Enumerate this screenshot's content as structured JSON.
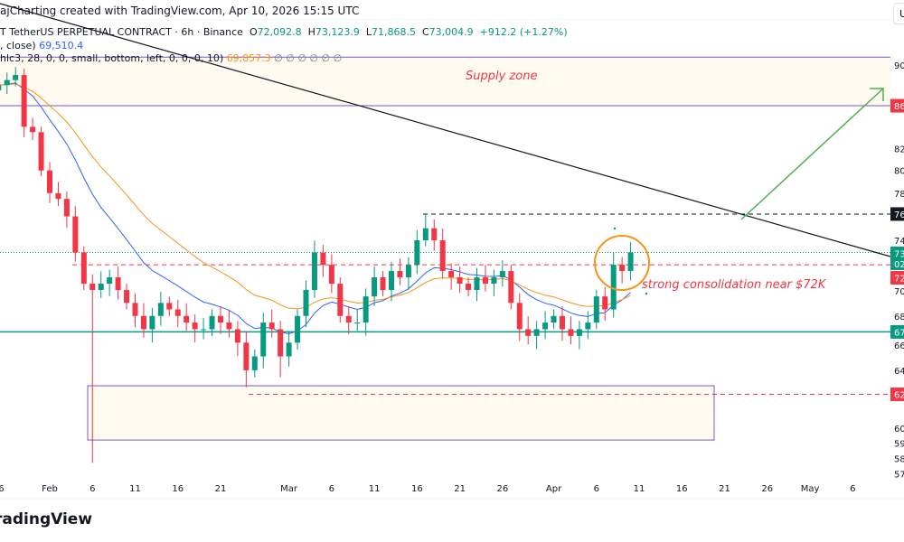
{
  "header": {
    "credit": "ajCharting created with TradingView.com, Apr 10, 2026 15:15 UTC",
    "symbol": "T TetherUS PERPETUAL CONTRACT · 6h · Binance",
    "open_label": "O",
    "open": "72,092.8",
    "high_label": "H",
    "high": "73,123.9",
    "low_label": "L",
    "low": "71,868.5",
    "close_label": "C",
    "close": "73,004.9",
    "change": "+912.2 (+1.27%)",
    "ind1_text": ", close)",
    "ind1_value": "69,510.4",
    "ind2_text": "hlc3, 28, 0, 0, small, bottom, left, 0, 0, 0, 10)",
    "ind2_value": "69,857.3",
    "ind2_empty": "∅  ∅  ∅  ∅  ∅  ∅"
  },
  "top_right_button": "U",
  "logo": "radingView",
  "annotations": {
    "supply_zone": "Supply zone",
    "consolidation": "strong consolidation near $72K"
  },
  "colors": {
    "up": "#089981",
    "down": "#f23645",
    "ema_fast": "#2962ff",
    "ema_slow": "#f7931a",
    "zone_border": "#7e57c2",
    "trendline": "#131722",
    "arrow": "#4caf50",
    "circle": "#f7931a"
  },
  "chart_data": {
    "type": "candlestick",
    "scale": "log",
    "ylim": [
      57000,
      91000
    ],
    "start_date": "Jan 26",
    "first_open": 87.5,
    "closes_k": [
      88,
      88.5,
      89,
      84,
      83.5,
      80,
      78,
      77.5,
      76,
      73,
      70.5,
      70,
      70.5,
      71,
      70,
      69,
      68,
      67,
      68,
      69,
      68.5,
      68,
      67.5,
      67,
      67,
      68,
      67.5,
      67,
      66,
      64,
      65,
      67.5,
      67,
      65,
      66,
      68,
      70,
      73,
      72,
      70.5,
      68,
      67.5,
      67.5,
      69.5,
      71,
      70,
      71.5,
      71,
      72,
      74,
      75,
      74,
      71.5,
      71,
      70.5,
      70,
      71,
      70.5,
      71,
      71.5,
      69,
      67,
      66.5,
      67,
      67.5,
      68,
      67,
      66.5,
      67,
      67.5,
      69.5,
      68.5,
      72,
      71.5,
      73.0
    ],
    "extreme_wicks_k": [
      {
        "date": "Feb 6",
        "low": 57.7
      },
      {
        "date": "Feb 24",
        "low": 62.8
      },
      {
        "date": "Feb 28",
        "low": 63.5
      },
      {
        "date": "Mar 17",
        "high": 76.2
      },
      {
        "date": "Jan 28",
        "high": 89.8
      }
    ],
    "indicators": [
      {
        "value_label": "69,510.4",
        "color": "#2962ff"
      },
      {
        "value_label": "69,857.3",
        "color": "#f7931a"
      }
    ],
    "levels": {
      "supply_zone_k": [
        86,
        90.8
      ],
      "demand_box_k": [
        59.2,
        62.9
      ],
      "resistance_k": 76.2,
      "current_k": 73.0,
      "support_72_k": 72.0,
      "support_67_k": 66.8,
      "low_level_k": 62.3
    },
    "x_ticks": [
      {
        "label": "26",
        "day": 0
      },
      {
        "label": "Feb",
        "day": 6
      },
      {
        "label": "6",
        "day": 11
      },
      {
        "label": "11",
        "day": 16
      },
      {
        "label": "16",
        "day": 21
      },
      {
        "label": "21",
        "day": 26
      },
      {
        "label": "Mar",
        "day": 34
      },
      {
        "label": "6",
        "day": 39
      },
      {
        "label": "11",
        "day": 44
      },
      {
        "label": "16",
        "day": 49
      },
      {
        "label": "21",
        "day": 54
      },
      {
        "label": "26",
        "day": 59
      },
      {
        "label": "Apr",
        "day": 65
      },
      {
        "label": "6",
        "day": 70
      },
      {
        "label": "11",
        "day": 75
      },
      {
        "label": "16",
        "day": 80
      },
      {
        "label": "21",
        "day": 85
      },
      {
        "label": "26",
        "day": 90
      },
      {
        "label": "May",
        "day": 95
      },
      {
        "label": "6",
        "day": 100
      }
    ],
    "y_ticks": [
      90,
      82,
      80,
      78,
      74,
      70,
      68,
      66,
      64,
      60,
      59,
      58,
      57
    ],
    "price_labels": [
      {
        "text": "86",
        "k": 86,
        "bg": "#f23645"
      },
      {
        "text": "76",
        "k": 76.2,
        "bg": "#131722"
      },
      {
        "text": "73",
        "sub": "02",
        "k": 73.0,
        "bg": "#089981"
      },
      {
        "text": "72",
        "k": 71.8,
        "bg": "#f23645"
      },
      {
        "text": "67",
        "k": 66.8,
        "bg": "#089981"
      },
      {
        "text": "62",
        "k": 62.3,
        "bg": "#f23645"
      }
    ]
  }
}
